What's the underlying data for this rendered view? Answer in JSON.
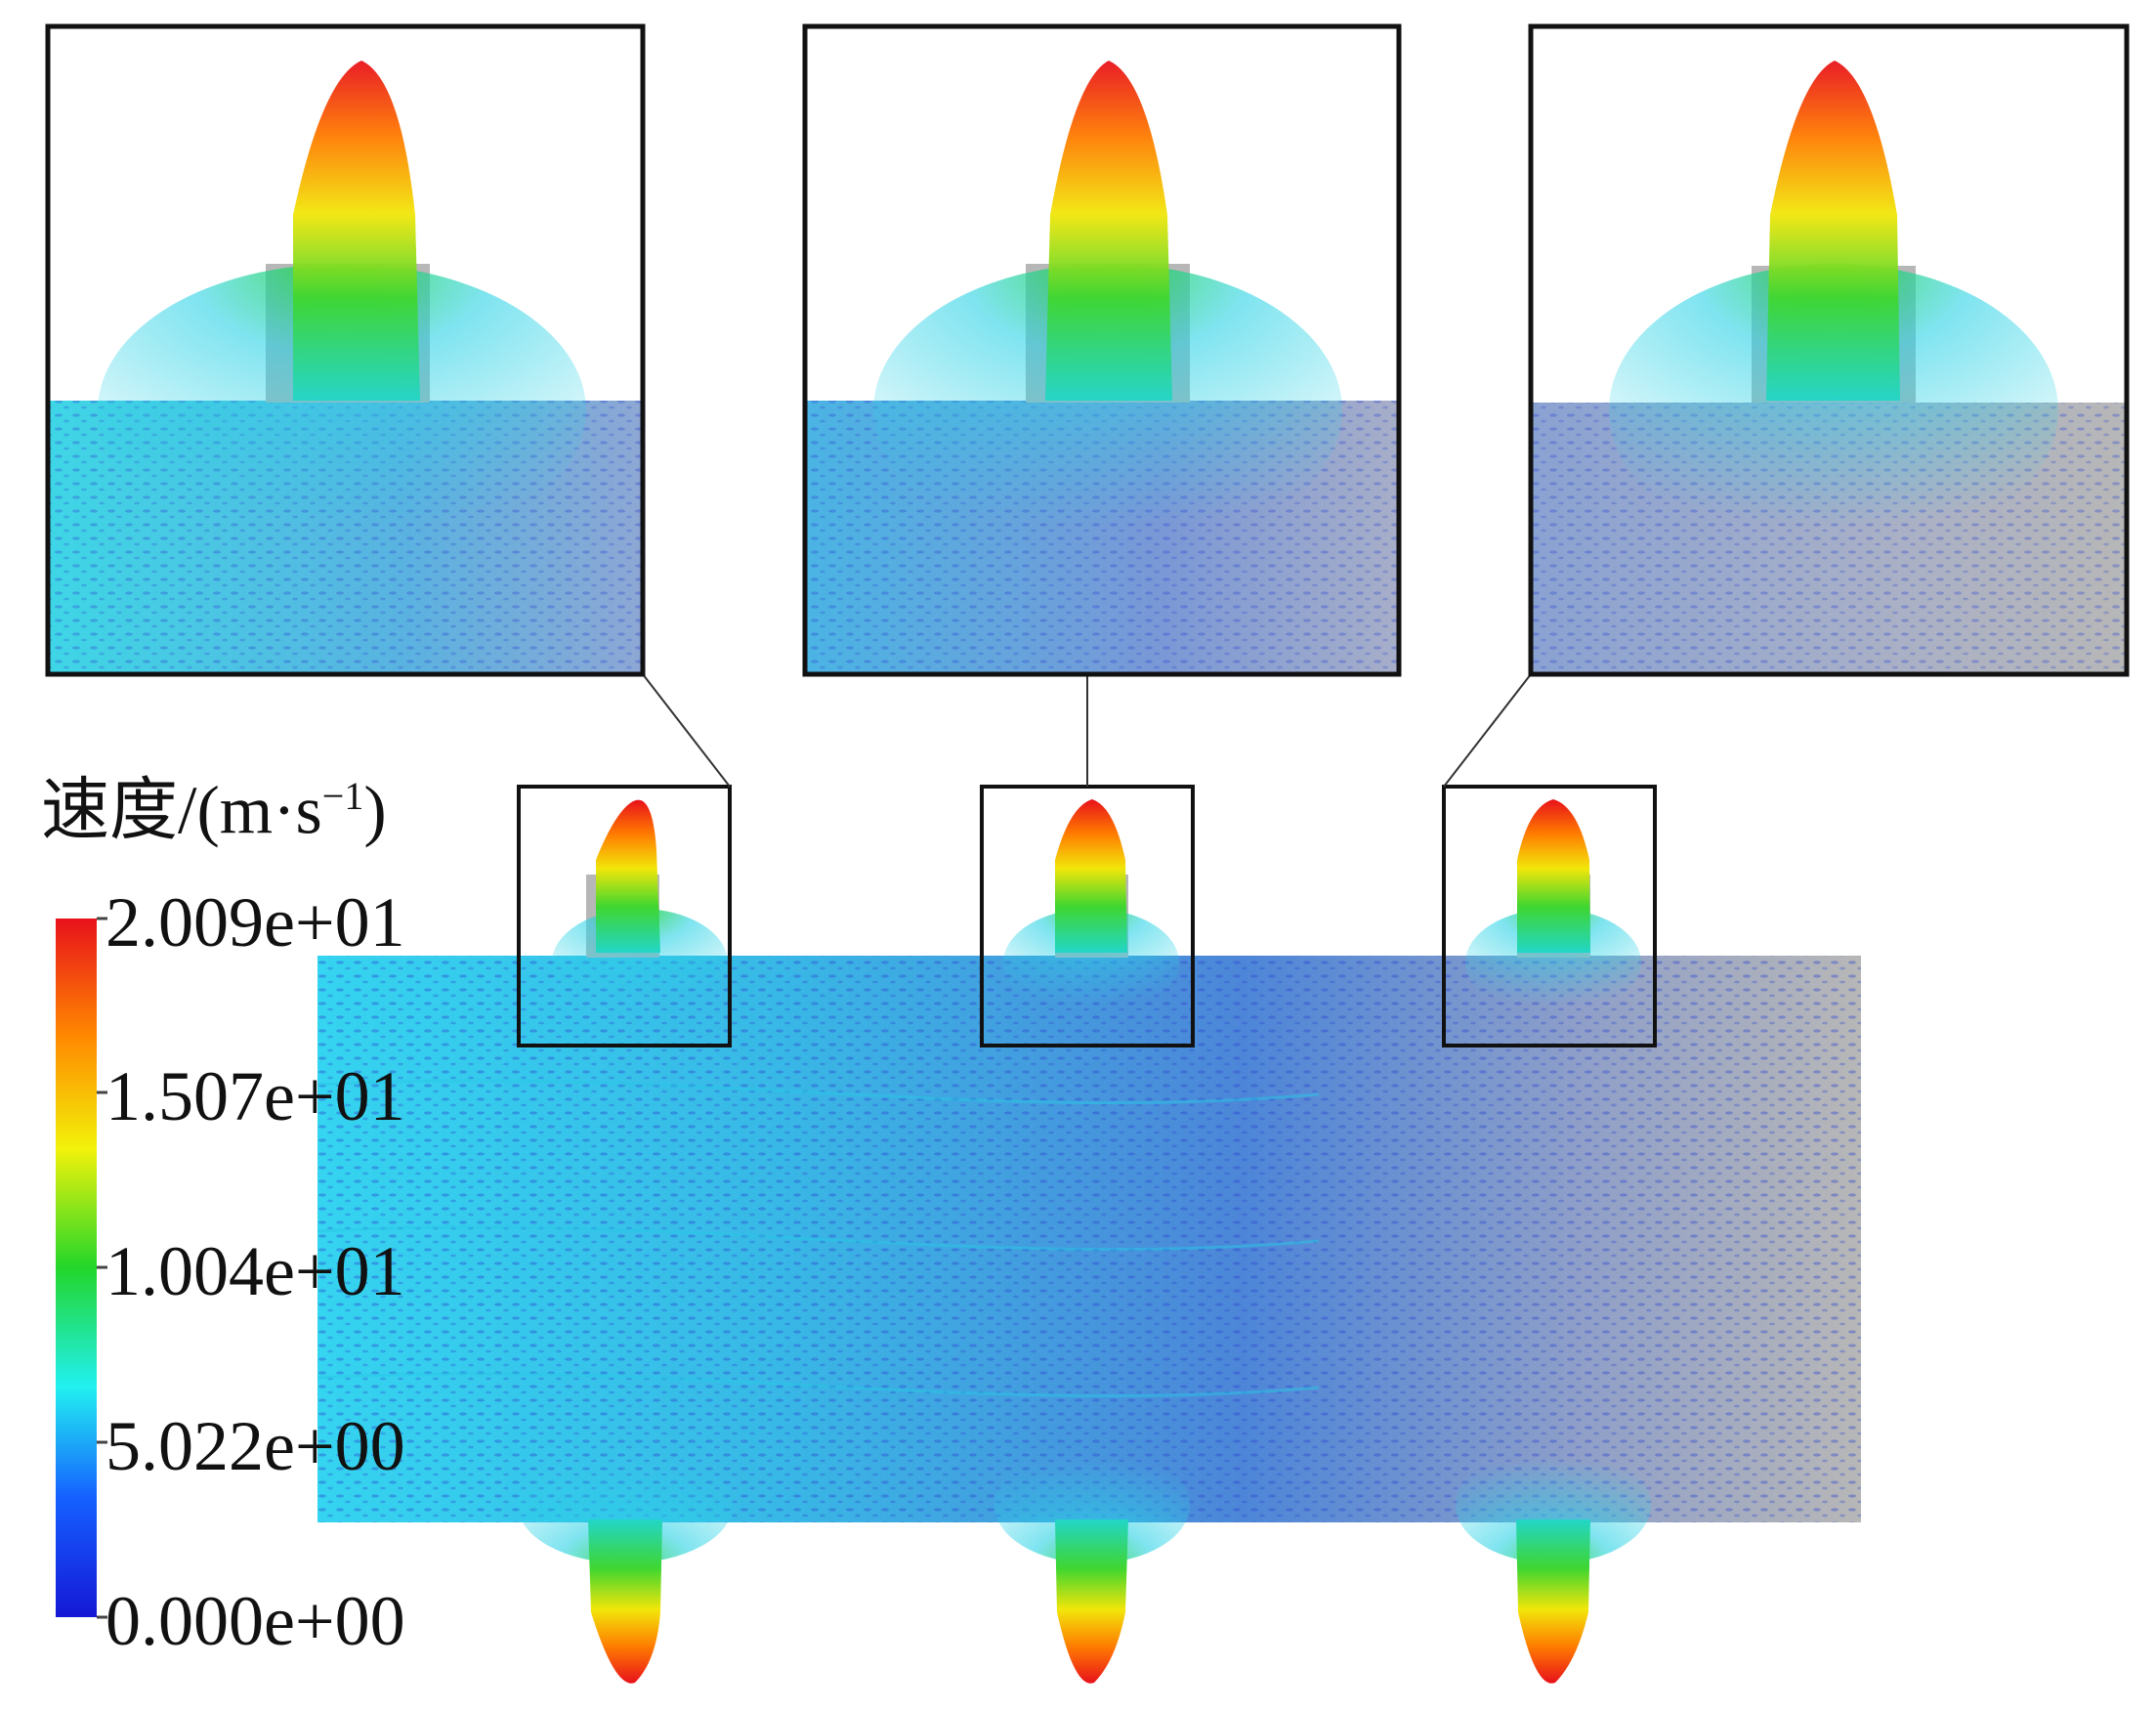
{
  "colorbar": {
    "title_prefix": "速度/(m·s",
    "title_exponent": "−1",
    "title_suffix": ")",
    "ticks": [
      "2.009e+01",
      "1.507e+01",
      "1.004e+01",
      "5.022e+00",
      "0.000e+00"
    ],
    "max_value": 20.09,
    "min_value": 0.0,
    "colors": [
      "#e8111b",
      "#ff8a00",
      "#f2f20a",
      "#22d62a",
      "#22f0f0",
      "#1560ff",
      "#1518d6"
    ]
  },
  "field_colors": {
    "background": "#b7b7b7",
    "low": "#3a57d8",
    "mid": "#27c7e6",
    "high": "#e8111b"
  },
  "outlets": {
    "count_top": 3,
    "count_bottom": 3
  }
}
